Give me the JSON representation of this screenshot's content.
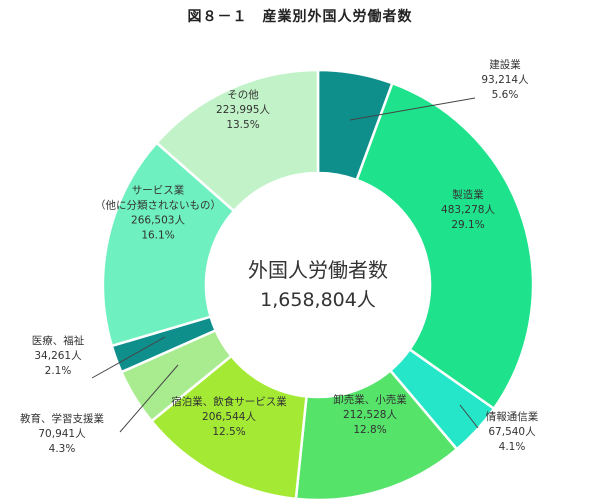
{
  "chart_data": {
    "type": "pie",
    "title": "図８－１　産業別外国人労働者数",
    "center_label": "外国人労働者数",
    "total": "1,658,804人",
    "slices": [
      {
        "name": "建設業",
        "value": 93214,
        "value_label": "93,214人",
        "percent": 5.6,
        "percent_label": "5.6%",
        "color": "#0f8f8c"
      },
      {
        "name": "製造業",
        "value": 483278,
        "value_label": "483,278人",
        "percent": 29.1,
        "percent_label": "29.1%",
        "color": "#1fe38c"
      },
      {
        "name": "情報通信業",
        "value": 67540,
        "value_label": "67,540人",
        "percent": 4.1,
        "percent_label": "4.1%",
        "color": "#25e6c8"
      },
      {
        "name": "卸売業、小売業",
        "value": 212528,
        "value_label": "212,528人",
        "percent": 12.8,
        "percent_label": "12.8%",
        "color": "#55e36a"
      },
      {
        "name": "宿泊業、飲食サービス業",
        "value": 206544,
        "value_label": "206,544人",
        "percent": 12.5,
        "percent_label": "12.5%",
        "color": "#a4ea35"
      },
      {
        "name": "教育、学習支援業",
        "value": 70941,
        "value_label": "70,941人",
        "percent": 4.3,
        "percent_label": "4.3%",
        "color": "#a9ec90"
      },
      {
        "name": "医療、福祉",
        "value": 34261,
        "value_label": "34,261人",
        "percent": 2.1,
        "percent_label": "2.1%",
        "color": "#0f8f8c"
      },
      {
        "name": "サービス業\n（他に分類されないもの）",
        "value": 266503,
        "value_label": "266,503人",
        "percent": 16.1,
        "percent_label": "16.1%",
        "color": "#6ff0c0"
      },
      {
        "name": "その他",
        "value": 223995,
        "value_label": "223,995人",
        "percent": 13.5,
        "percent_label": "13.5%",
        "color": "#c2f3c8"
      }
    ]
  }
}
